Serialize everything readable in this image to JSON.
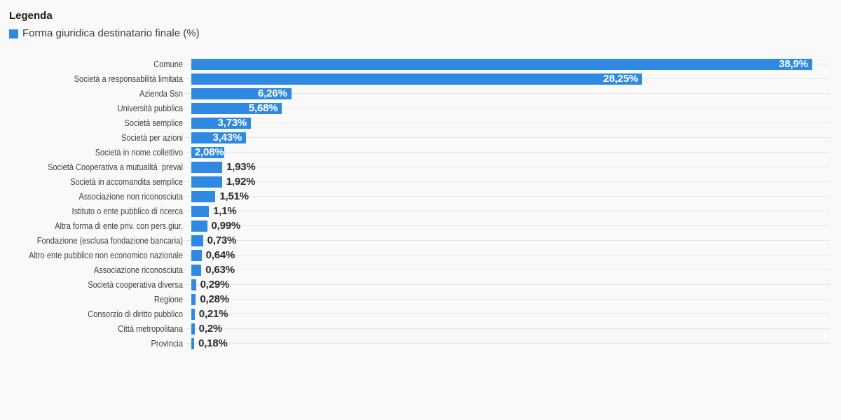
{
  "legend": {
    "title": "Legenda",
    "items": [
      {
        "label": "Forma giuridica destinatario finale (%)",
        "color": "#2f88e2"
      }
    ]
  },
  "chart_data": {
    "type": "bar",
    "orientation": "horizontal",
    "title": "",
    "series_name": "Forma giuridica destinatario finale (%)",
    "categories": [
      "Comune",
      "Società a responsabilità limitata",
      "Azienda Ssn",
      "Università pubblica",
      "Società semplice",
      "Società per azioni",
      "Società in nome collettivo",
      "Società Cooperativa a mutualità  preval",
      "Società in accomandita semplice",
      "Associazione non riconosciuta",
      "Istituto o ente pubblico di ricerca",
      "Altra forma di ente priv. con pers.giur.",
      "Fondazione (esclusa fondazione bancaria)",
      "Altro ente pubblico non economico nazionale",
      "Associazione riconosciuta",
      "Società cooperativa diversa",
      "Regione",
      "Consorzio di diritto pubblico",
      "Città metropolitana",
      "Provincia"
    ],
    "values": [
      38.9,
      28.25,
      6.26,
      5.68,
      3.73,
      3.43,
      2.08,
      1.93,
      1.92,
      1.51,
      1.1,
      0.99,
      0.73,
      0.64,
      0.63,
      0.29,
      0.28,
      0.21,
      0.2,
      0.18
    ],
    "value_labels": [
      "38,9%",
      "28,25%",
      "6,26%",
      "5,68%",
      "3,73%",
      "3,43%",
      "2,08%",
      "1,93%",
      "1,92%",
      "1,51%",
      "1,1%",
      "0,99%",
      "0,73%",
      "0,64%",
      "0,63%",
      "0,29%",
      "0,28%",
      "0,21%",
      "0,2%",
      "0,18%"
    ],
    "xlim": [
      0,
      40
    ],
    "grid": true,
    "legend_position": "top-left",
    "bar_color": "#2f88e2",
    "colors": {
      "bar": "#2f88e2",
      "grid_line": "#e6e6e6",
      "category_label": "#404040",
      "value_label_outside": "#2b2b2b",
      "value_label_inside": "#ffffff",
      "background": "#f9f9f9"
    }
  }
}
